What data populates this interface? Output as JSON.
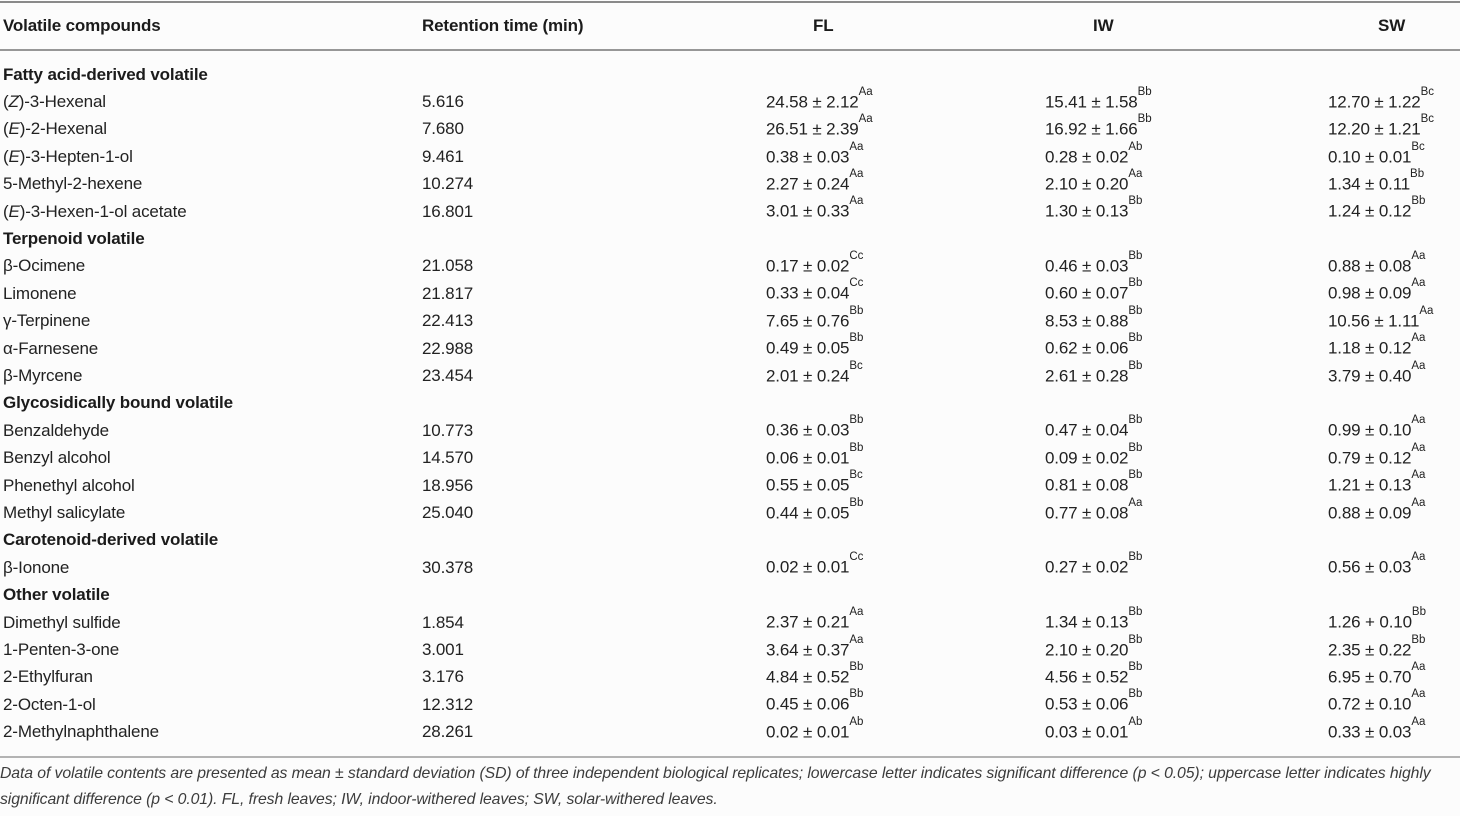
{
  "table": {
    "columns": [
      "Volatile compounds",
      "Retention time (min)",
      "FL",
      "IW",
      "SW"
    ],
    "sections": [
      {
        "title": "Fatty acid-derived volatile",
        "rows": [
          {
            "name": "(Z)-3-Hexenal",
            "rt": "5.616",
            "fl": "24.58 ± 2.12",
            "fl_sup": "Aa",
            "iw": "15.41 ± 1.58",
            "iw_sup": "Bb",
            "sw": "12.70 ± 1.22",
            "sw_sup": "Bc"
          },
          {
            "name": "(E)-2-Hexenal",
            "rt": "7.680",
            "fl": "26.51 ± 2.39",
            "fl_sup": "Aa",
            "iw": "16.92 ± 1.66",
            "iw_sup": "Bb",
            "sw": "12.20 ± 1.21",
            "sw_sup": "Bc"
          },
          {
            "name": "(E)-3-Hepten-1-ol",
            "rt": "9.461",
            "fl": "0.38 ± 0.03",
            "fl_sup": "Aa",
            "iw": "0.28 ± 0.02",
            "iw_sup": "Ab",
            "sw": "0.10 ± 0.01",
            "sw_sup": "Bc"
          },
          {
            "name": "5-Methyl-2-hexene",
            "rt": "10.274",
            "fl": "2.27 ± 0.24",
            "fl_sup": "Aa",
            "iw": "2.10 ± 0.20",
            "iw_sup": "Aa",
            "sw": "1.34 ± 0.11",
            "sw_sup": "Bb"
          },
          {
            "name": "(E)-3-Hexen-1-ol acetate",
            "rt": "16.801",
            "fl": "3.01 ± 0.33",
            "fl_sup": "Aa",
            "iw": "1.30 ± 0.13",
            "iw_sup": "Bb",
            "sw": "1.24 ± 0.12",
            "sw_sup": "Bb"
          }
        ]
      },
      {
        "title": "Terpenoid volatile",
        "rows": [
          {
            "name": "β-Ocimene",
            "rt": "21.058",
            "fl": "0.17 ± 0.02",
            "fl_sup": "Cc",
            "iw": "0.46 ± 0.03",
            "iw_sup": "Bb",
            "sw": "0.88 ± 0.08",
            "sw_sup": "Aa"
          },
          {
            "name": "Limonene",
            "rt": "21.817",
            "fl": "0.33 ± 0.04",
            "fl_sup": "Cc",
            "iw": "0.60 ± 0.07",
            "iw_sup": "Bb",
            "sw": "0.98 ± 0.09",
            "sw_sup": "Aa"
          },
          {
            "name": "γ-Terpinene",
            "rt": "22.413",
            "fl": "7.65 ± 0.76",
            "fl_sup": "Bb",
            "iw": "8.53 ± 0.88",
            "iw_sup": "Bb",
            "sw": "10.56 ± 1.11",
            "sw_sup": "Aa"
          },
          {
            "name": "α-Farnesene",
            "rt": "22.988",
            "fl": "0.49 ± 0.05",
            "fl_sup": "Bb",
            "iw": "0.62 ± 0.06",
            "iw_sup": "Bb",
            "sw": "1.18 ± 0.12",
            "sw_sup": "Aa"
          },
          {
            "name": "β-Myrcene",
            "rt": "23.454",
            "fl": "2.01 ± 0.24",
            "fl_sup": "Bc",
            "iw": "2.61 ± 0.28",
            "iw_sup": "Bb",
            "sw": "3.79 ± 0.40",
            "sw_sup": "Aa"
          }
        ]
      },
      {
        "title": "Glycosidically bound volatile",
        "rows": [
          {
            "name": "Benzaldehyde",
            "rt": "10.773",
            "fl": "0.36 ± 0.03",
            "fl_sup": "Bb",
            "iw": "0.47 ± 0.04",
            "iw_sup": "Bb",
            "sw": "0.99 ± 0.10",
            "sw_sup": "Aa"
          },
          {
            "name": "Benzyl alcohol",
            "rt": "14.570",
            "fl": "0.06 ± 0.01",
            "fl_sup": "Bb",
            "iw": "0.09 ± 0.02",
            "iw_sup": "Bb",
            "sw": "0.79 ± 0.12",
            "sw_sup": "Aa"
          },
          {
            "name": "Phenethyl alcohol",
            "rt": "18.956",
            "fl": "0.55 ± 0.05",
            "fl_sup": "Bc",
            "iw": "0.81 ± 0.08",
            "iw_sup": "Bb",
            "sw": "1.21 ± 0.13",
            "sw_sup": "Aa"
          },
          {
            "name": "Methyl salicylate",
            "rt": "25.040",
            "fl": "0.44 ± 0.05",
            "fl_sup": "Bb",
            "iw": "0.77 ± 0.08",
            "iw_sup": "Aa",
            "sw": "0.88 ± 0.09",
            "sw_sup": "Aa"
          }
        ]
      },
      {
        "title": "Carotenoid-derived volatile",
        "rows": [
          {
            "name": "β-Ionone",
            "rt": "30.378",
            "fl": "0.02 ± 0.01",
            "fl_sup": "Cc",
            "iw": "0.27 ± 0.02",
            "iw_sup": "Bb",
            "sw": "0.56 ± 0.03",
            "sw_sup": "Aa"
          }
        ]
      },
      {
        "title": "Other volatile",
        "rows": [
          {
            "name": "Dimethyl sulfide",
            "rt": "1.854",
            "fl": "2.37 ± 0.21",
            "fl_sup": "Aa",
            "iw": "1.34 ± 0.13",
            "iw_sup": "Bb",
            "sw": "1.26 + 0.10",
            "sw_sup": "Bb"
          },
          {
            "name": "1-Penten-3-one",
            "rt": "3.001",
            "fl": "3.64 ± 0.37",
            "fl_sup": "Aa",
            "iw": "2.10 ± 0.20",
            "iw_sup": "Bb",
            "sw": "2.35 ± 0.22",
            "sw_sup": "Bb"
          },
          {
            "name": "2-Ethylfuran",
            "rt": "3.176",
            "fl": "4.84 ± 0.52",
            "fl_sup": "Bb",
            "iw": "4.56 ± 0.52",
            "iw_sup": "Bb",
            "sw": "6.95 ± 0.70",
            "sw_sup": "Aa"
          },
          {
            "name": "2-Octen-1-ol",
            "rt": "12.312",
            "fl": "0.45 ± 0.06",
            "fl_sup": "Bb",
            "iw": "0.53 ± 0.06",
            "iw_sup": "Bb",
            "sw": "0.72 ± 0.10",
            "sw_sup": "Aa"
          },
          {
            "name": "2-Methylnaphthalene",
            "rt": "28.261",
            "fl": "0.02 ± 0.01",
            "fl_sup": "Ab",
            "iw": "0.03 ± 0.01",
            "iw_sup": "Ab",
            "sw": "0.33 ± 0.03",
            "sw_sup": "Aa"
          }
        ]
      }
    ]
  },
  "footnote": {
    "text": "Data of volatile contents are presented as mean ± standard deviation (SD) of three independent biological replicates; lowercase letter indicates significant difference (p < 0.05); uppercase letter indicates highly significant difference (p < 0.01). FL, fresh leaves; IW, indoor-withered leaves; SW, solar-withered leaves."
  },
  "colors": {
    "text": "#222222",
    "rule_top": "#8a8a8a",
    "rule_header": "#979797",
    "rule_bottom": "#b3b3b3",
    "footnote_text": "#3c3c3c",
    "background": "#fcfcfc"
  }
}
